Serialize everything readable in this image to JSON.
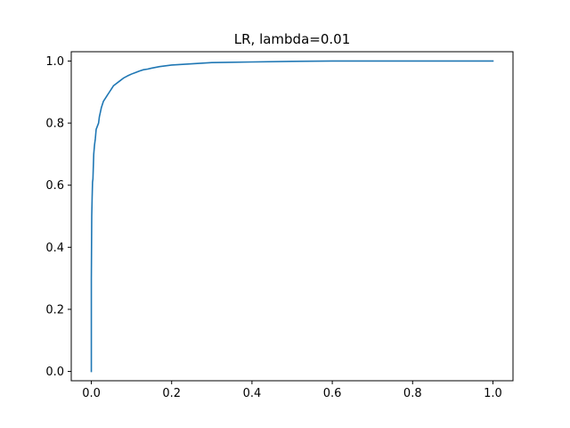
{
  "chart_data": {
    "type": "line",
    "title": "LR, lambda=0.01",
    "xlabel": "",
    "ylabel": "",
    "xlim": [
      -0.05,
      1.05
    ],
    "ylim": [
      -0.03,
      1.03
    ],
    "grid": false,
    "series": [
      {
        "color": "#1f77b4",
        "x": [
          0.0,
          0.0,
          0.001,
          0.002,
          0.003,
          0.004,
          0.005,
          0.006,
          0.008,
          0.01,
          0.012,
          0.015,
          0.018,
          0.02,
          0.025,
          0.03,
          0.035,
          0.04,
          0.045,
          0.05,
          0.055,
          0.06,
          0.07,
          0.08,
          0.09,
          0.1,
          0.11,
          0.12,
          0.13,
          0.14,
          0.15,
          0.17,
          0.2,
          0.25,
          0.3,
          0.4,
          0.5,
          0.6,
          0.8,
          1.0
        ],
        "y": [
          0.0,
          0.3,
          0.5,
          0.56,
          0.61,
          0.62,
          0.66,
          0.7,
          0.73,
          0.75,
          0.78,
          0.79,
          0.8,
          0.82,
          0.85,
          0.87,
          0.88,
          0.89,
          0.9,
          0.91,
          0.92,
          0.925,
          0.935,
          0.945,
          0.952,
          0.958,
          0.963,
          0.968,
          0.972,
          0.974,
          0.977,
          0.982,
          0.987,
          0.991,
          0.995,
          0.997,
          0.999,
          1.0,
          1.0,
          1.0
        ]
      }
    ],
    "xticks": [
      "0.0",
      "0.2",
      "0.4",
      "0.6",
      "0.8",
      "1.0"
    ],
    "xtick_values": [
      0.0,
      0.2,
      0.4,
      0.6,
      0.8,
      1.0
    ],
    "yticks": [
      "0.0",
      "0.2",
      "0.4",
      "0.6",
      "0.8",
      "1.0"
    ],
    "ytick_values": [
      0.0,
      0.2,
      0.4,
      0.6,
      0.8,
      1.0
    ]
  }
}
